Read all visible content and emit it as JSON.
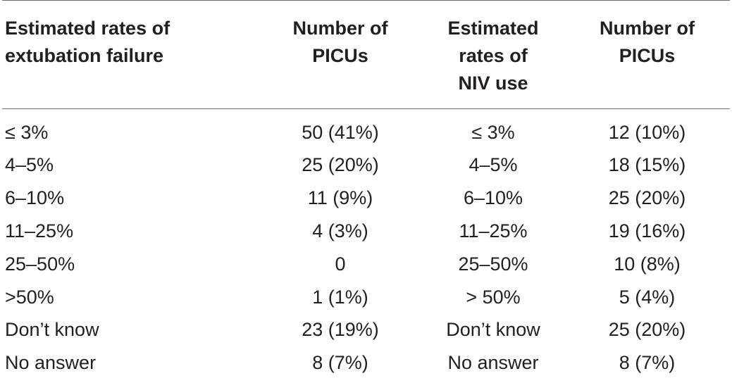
{
  "table": {
    "headers": [
      [
        "Estimated rates of",
        "extubation failure"
      ],
      [
        "Number of",
        "PICUs"
      ],
      [
        "Estimated",
        "rates of",
        "NIV use"
      ],
      [
        "Number of",
        "PICUs"
      ]
    ],
    "rows": [
      [
        "≤  3%",
        "50 (41%)",
        "≤ 3%",
        "12 (10%)"
      ],
      [
        "4–5%",
        "25 (20%)",
        "4–5%",
        "18 (15%)"
      ],
      [
        "6–10%",
        "11 (9%)",
        "6–10%",
        "25 (20%)"
      ],
      [
        "11–25%",
        "4 (3%)",
        "11–25%",
        "19 (16%)"
      ],
      [
        "25–50%",
        "0",
        "25–50%",
        "10 (8%)"
      ],
      [
        ">50%",
        "1 (1%)",
        "> 50%",
        "5 (4%)"
      ],
      [
        "Don’t know",
        "23 (19%)",
        "Don’t know",
        "25 (20%)"
      ],
      [
        "No answer",
        "8 (7%)",
        "No answer",
        "8 (7%)"
      ]
    ]
  }
}
